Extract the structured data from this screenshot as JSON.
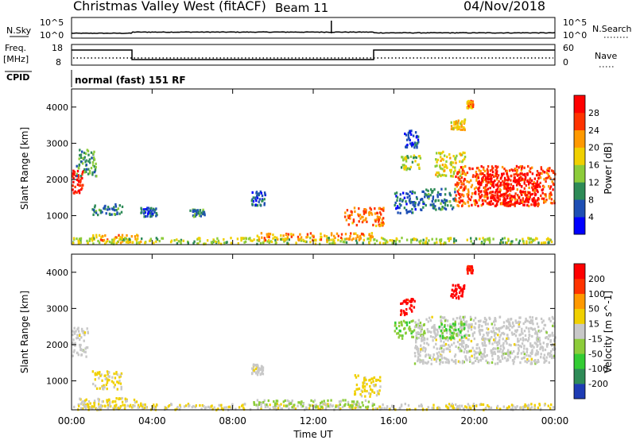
{
  "header": {
    "title": "Christmas Valley West (fitACF)",
    "beam": "Beam 11",
    "date": "04/Nov/2018"
  },
  "panels": {
    "nsky": {
      "label": "N.Sky",
      "ticks": [
        "10^5",
        "10^0"
      ],
      "right_label": "N.Search",
      "right_ticks": [
        "10^5",
        "10^0"
      ]
    },
    "freq": {
      "label_top": "Freq.",
      "label_unit": "[MHz]",
      "ticks": [
        "18",
        "8"
      ],
      "right_label": "Nave",
      "right_ticks": [
        "60",
        "0"
      ],
      "steps": [
        {
          "from": 0,
          "to": 3,
          "level": "high"
        },
        {
          "from": 3,
          "to": 15,
          "level": "low"
        },
        {
          "from": 15,
          "to": 24,
          "level": "high"
        }
      ]
    },
    "cpid": {
      "label": "CPID",
      "text": "normal (fast) 151 RF"
    }
  },
  "chart_data": [
    {
      "type": "heatmap",
      "title": "",
      "xlabel": "Time UT",
      "ylabel": "Slant Range [km]",
      "x_ticks": [
        "00:00",
        "04:00",
        "08:00",
        "12:00",
        "16:00",
        "20:00",
        "00:00"
      ],
      "xlim": [
        0,
        24
      ],
      "y_ticks": [
        1000,
        2000,
        3000,
        4000
      ],
      "ylim": [
        200,
        4500
      ],
      "colorbar": {
        "label": "Power [dB]",
        "ticks": [
          "4",
          "8",
          "12",
          "16",
          "20",
          "24",
          "28"
        ],
        "colors": [
          "#0000ff",
          "#1e4fb4",
          "#2e8b57",
          "#8ccc3a",
          "#f0d000",
          "#ff9900",
          "#ff3300",
          "#ff0000"
        ],
        "range": [
          0,
          30
        ]
      },
      "patches": [
        {
          "x": [
            0.0,
            0.6
          ],
          "y": [
            1650,
            2300
          ],
          "value": 27
        },
        {
          "x": [
            0.2,
            1.2
          ],
          "y": [
            2100,
            2850
          ],
          "value": 10
        },
        {
          "x": [
            1.0,
            2.6
          ],
          "y": [
            1050,
            1350
          ],
          "value": 8
        },
        {
          "x": [
            1.0,
            3.5
          ],
          "y": [
            280,
            500
          ],
          "value": 20
        },
        {
          "x": [
            3.4,
            4.2
          ],
          "y": [
            1000,
            1250
          ],
          "value": 6
        },
        {
          "x": [
            5.8,
            6.6
          ],
          "y": [
            1000,
            1200
          ],
          "value": 8
        },
        {
          "x": [
            8.9,
            9.6
          ],
          "y": [
            1300,
            1700
          ],
          "value": 6
        },
        {
          "x": [
            0.0,
            24.0
          ],
          "y": [
            250,
            420
          ],
          "value": 14
        },
        {
          "x": [
            9.0,
            15.0
          ],
          "y": [
            350,
            550
          ],
          "value": 20
        },
        {
          "x": [
            13.5,
            15.5
          ],
          "y": [
            750,
            1250
          ],
          "value": 22
        },
        {
          "x": [
            16.0,
            17.5
          ],
          "y": [
            1100,
            1700
          ],
          "value": 6
        },
        {
          "x": [
            16.3,
            17.3
          ],
          "y": [
            2300,
            2700
          ],
          "value": 14
        },
        {
          "x": [
            16.5,
            17.2
          ],
          "y": [
            2900,
            3400
          ],
          "value": 6
        },
        {
          "x": [
            17.5,
            19.0
          ],
          "y": [
            1200,
            1800
          ],
          "value": 8
        },
        {
          "x": [
            18.0,
            19.5
          ],
          "y": [
            2100,
            2800
          ],
          "value": 16
        },
        {
          "x": [
            19.0,
            24.0
          ],
          "y": [
            1300,
            2400
          ],
          "value": 24
        },
        {
          "x": [
            20.0,
            23.2
          ],
          "y": [
            1300,
            2200
          ],
          "value": 29
        },
        {
          "x": [
            18.8,
            19.5
          ],
          "y": [
            3400,
            3700
          ],
          "value": 18
        },
        {
          "x": [
            19.6,
            19.9
          ],
          "y": [
            4000,
            4200
          ],
          "value": 20
        }
      ]
    },
    {
      "type": "heatmap",
      "title": "",
      "xlabel": "Time UT",
      "ylabel": "Slant Range [km]",
      "x_ticks": [
        "00:00",
        "04:00",
        "08:00",
        "12:00",
        "16:00",
        "20:00",
        "00:00"
      ],
      "xlim": [
        0,
        24
      ],
      "y_ticks": [
        1000,
        2000,
        3000,
        4000
      ],
      "ylim": [
        200,
        4500
      ],
      "colorbar": {
        "label": "Velocity [m s^-1]",
        "ticks": [
          "200",
          "100",
          "50",
          "15",
          "-15",
          "-50",
          "-100",
          "-200"
        ],
        "colors": [
          "#1e3cb4",
          "#2e8b57",
          "#33cc33",
          "#8ccc3a",
          "#c8c8c8",
          "#f0d000",
          "#ff9900",
          "#ff3300",
          "#ff0000"
        ],
        "range": [
          -250,
          250
        ]
      },
      "patches": [
        {
          "x": [
            0.0,
            0.8
          ],
          "y": [
            1700,
            2500
          ],
          "value": 0
        },
        {
          "x": [
            1.0,
            2.5
          ],
          "y": [
            800,
            1300
          ],
          "value": 40
        },
        {
          "x": [
            0.3,
            3.5
          ],
          "y": [
            260,
            560
          ],
          "value": 40
        },
        {
          "x": [
            0.0,
            24.0
          ],
          "y": [
            230,
            400
          ],
          "value": 30
        },
        {
          "x": [
            9.0,
            15.0
          ],
          "y": [
            300,
            500
          ],
          "value": -40
        },
        {
          "x": [
            8.9,
            9.5
          ],
          "y": [
            1200,
            1500
          ],
          "value": 0
        },
        {
          "x": [
            14.0,
            15.3
          ],
          "y": [
            600,
            1200
          ],
          "value": 50
        },
        {
          "x": [
            16.0,
            17.5
          ],
          "y": [
            2200,
            2700
          ],
          "value": -60
        },
        {
          "x": [
            16.3,
            17.0
          ],
          "y": [
            2850,
            3300
          ],
          "value": 220
        },
        {
          "x": [
            17.0,
            24.0
          ],
          "y": [
            1500,
            2800
          ],
          "value": 0
        },
        {
          "x": [
            18.2,
            19.5
          ],
          "y": [
            2200,
            2700
          ],
          "value": -80
        },
        {
          "x": [
            18.8,
            19.5
          ],
          "y": [
            3300,
            3700
          ],
          "value": 230
        },
        {
          "x": [
            19.6,
            19.9
          ],
          "y": [
            4000,
            4200
          ],
          "value": 200
        }
      ]
    }
  ]
}
